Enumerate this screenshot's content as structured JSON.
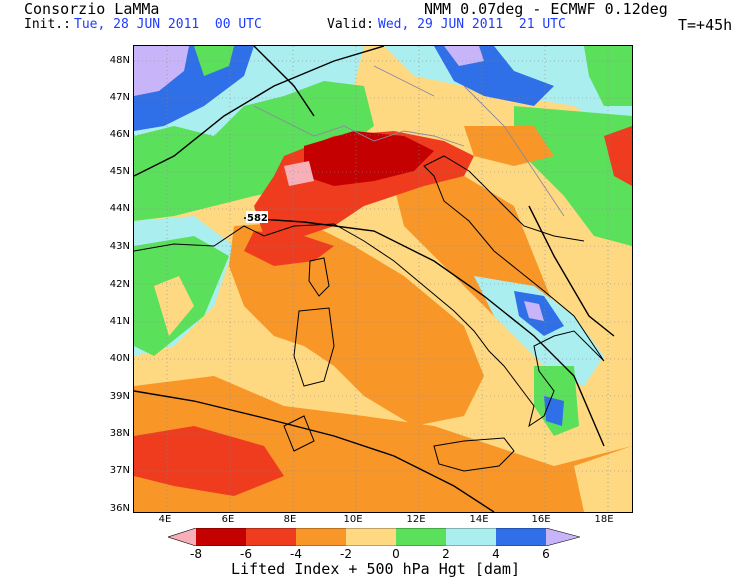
{
  "header": {
    "org": "Consorzio LaMMa",
    "model": "NMM 0.07deg - ECMWF 0.12deg",
    "init_label": "Init.:",
    "init_value": "Tue, 28 JUN 2011  00 UTC",
    "valid_label": "Valid:",
    "valid_value": "Wed, 29 JUN 2011  21 UTC",
    "forecast_step": "T=+45h"
  },
  "map": {
    "lat_labels": [
      "48N",
      "47N",
      "46N",
      "45N",
      "44N",
      "43N",
      "42N",
      "41N",
      "40N",
      "39N",
      "38N",
      "37N",
      "36N"
    ],
    "lon_labels": [
      "4E",
      "6E",
      "8E",
      "10E",
      "12E",
      "14E",
      "16E",
      "18E"
    ],
    "contour_label": "582"
  },
  "colorbar": {
    "colors": [
      "#f8b0b8",
      "#c40000",
      "#f03c1e",
      "#f89628",
      "#ffd982",
      "#5ae05a",
      "#aaeef0",
      "#2f6fe8",
      "#c8b4f8"
    ],
    "tick_labels": [
      "-8",
      "-6",
      "-4",
      "-2",
      "0",
      "2",
      "4",
      "6"
    ],
    "title": "Lifted Index + 500 hPa Hgt [dam]"
  }
}
